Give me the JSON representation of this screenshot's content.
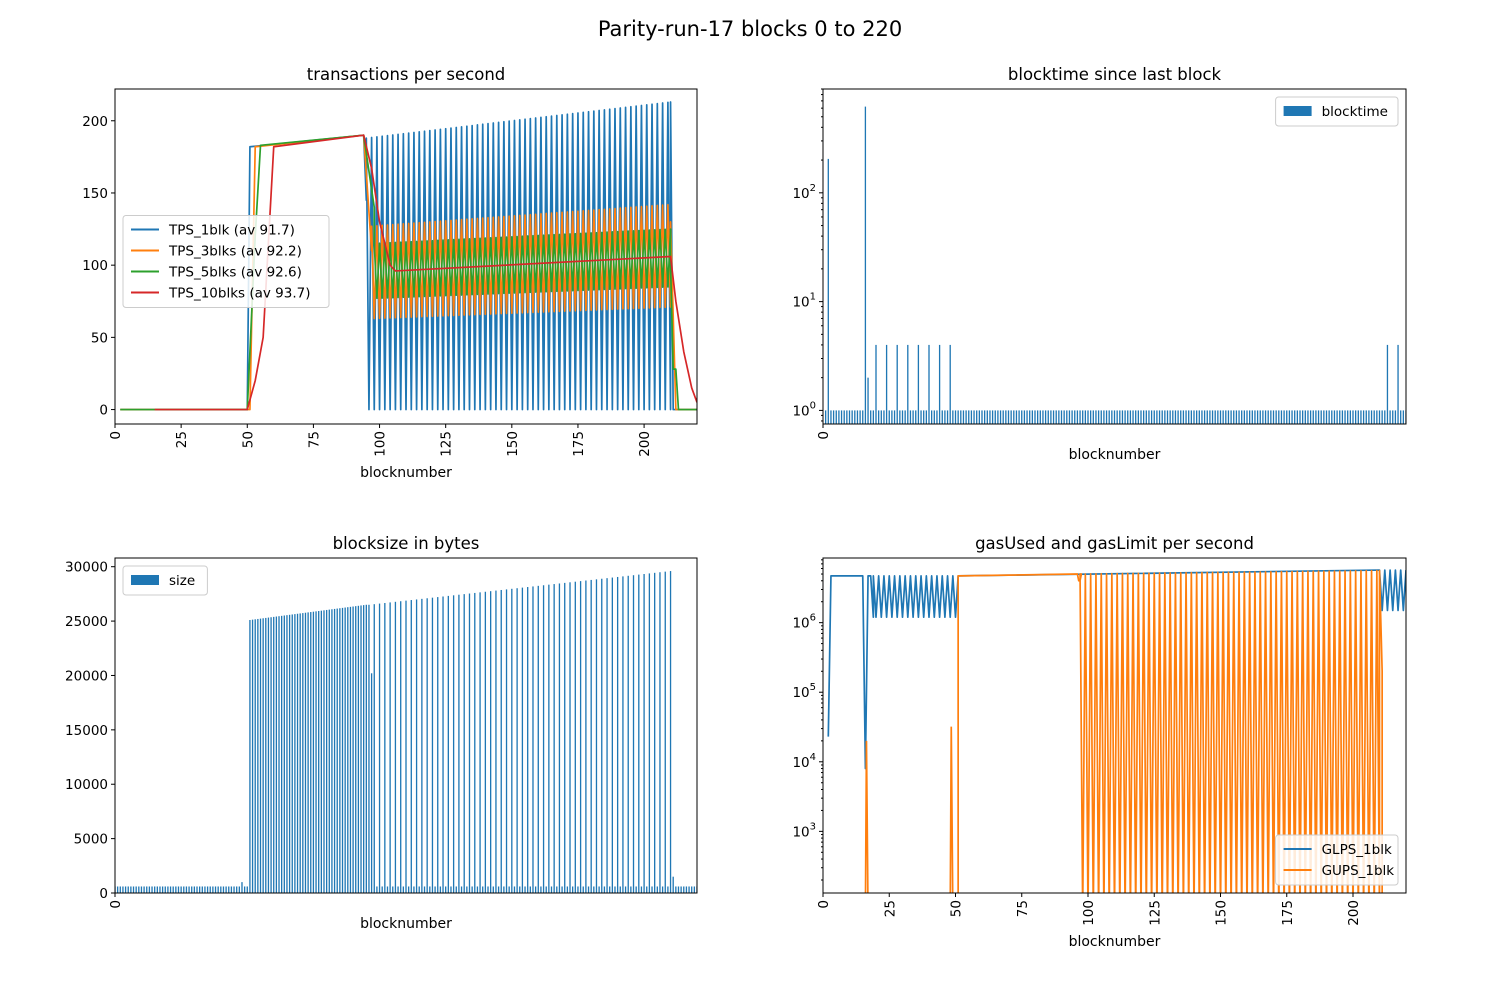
{
  "figure": {
    "title": "Parity-run-17 blocks 0 to 220",
    "colors": {
      "blue": "#1f77b4",
      "orange": "#ff7f0e",
      "green": "#2ca02c",
      "red": "#d62728"
    }
  },
  "chart_data": [
    {
      "id": "tps",
      "type": "line",
      "title": "transactions per second",
      "xlabel": "blocknumber",
      "ylabel": "",
      "xlim": [
        0,
        220
      ],
      "ylim": [
        -10,
        222
      ],
      "xticks": [
        0,
        25,
        50,
        75,
        100,
        125,
        150,
        175,
        200
      ],
      "yticks": [
        0,
        50,
        100,
        150,
        200
      ],
      "legend": "center-left",
      "series": [
        {
          "name": "TPS_1blk (av 91.7)",
          "color": "#1f77b4",
          "segments": [
            {
              "kind": "line",
              "points": [
                [
                  2,
                  0
                ],
                [
                  50,
                  0
                ],
                [
                  51,
                  182
                ],
                [
                  94,
                  190
                ],
                [
                  95,
                  145
                ]
              ]
            },
            {
              "kind": "osc",
              "from": 95,
              "to": 210,
              "period": 2,
              "high": [
                188,
                213
              ],
              "low": [
                0,
                0
              ]
            },
            {
              "kind": "line",
              "points": [
                [
                  210,
                  213
                ],
                [
                  211,
                  0
                ],
                [
                  220,
                  0
                ]
              ]
            }
          ]
        },
        {
          "name": "TPS_3blks (av 92.2)",
          "color": "#ff7f0e",
          "segments": [
            {
              "kind": "line",
              "points": [
                [
                  2,
                  0
                ],
                [
                  51,
                  0
                ],
                [
                  53,
                  182
                ],
                [
                  94,
                  190
                ],
                [
                  97,
                  110
                ]
              ]
            },
            {
              "kind": "osc",
              "from": 97,
              "to": 210,
              "period": 2,
              "high": [
                127,
                142
              ],
              "low": [
                63,
                71
              ]
            },
            {
              "kind": "line",
              "points": [
                [
                  210,
                  130
                ],
                [
                  212,
                  0
                ],
                [
                  220,
                  0
                ]
              ]
            }
          ]
        },
        {
          "name": "TPS_5blks (av 92.6)",
          "color": "#2ca02c",
          "segments": [
            {
              "kind": "line",
              "points": [
                [
                  2,
                  0
                ],
                [
                  50,
                  0
                ],
                [
                  53,
                  120
                ],
                [
                  55,
                  183
                ],
                [
                  94,
                  190
                ],
                [
                  98,
                  140
                ]
              ]
            },
            {
              "kind": "osc",
              "from": 98,
              "to": 210,
              "period": 2,
              "high": [
                115,
                125
              ],
              "low": [
                77,
                85
              ]
            },
            {
              "kind": "line",
              "points": [
                [
                  210,
                  100
                ],
                [
                  211,
                  28
                ],
                [
                  212,
                  28
                ],
                [
                  213,
                  0
                ],
                [
                  220,
                  0
                ]
              ]
            }
          ]
        },
        {
          "name": "TPS_10blks (av 93.7)",
          "color": "#d62728",
          "segments": [
            {
              "kind": "line",
              "points": [
                [
                  15,
                  0
                ],
                [
                  50,
                  0
                ],
                [
                  53,
                  20
                ],
                [
                  56,
                  50
                ],
                [
                  60,
                  182
                ],
                [
                  94,
                  190
                ],
                [
                  97,
                  167
                ],
                [
                  100,
                  130
                ],
                [
                  104,
                  100
                ],
                [
                  106,
                  96
                ],
                [
                  210,
                  106
                ],
                [
                  212,
                  75
                ],
                [
                  215,
                  40
                ],
                [
                  218,
                  15
                ],
                [
                  220,
                  5
                ]
              ]
            }
          ]
        }
      ]
    },
    {
      "id": "blocktime",
      "type": "bar",
      "title": "blocktime since last block",
      "xlabel": "blocknumber",
      "ylabel": "",
      "yscale": "log",
      "xlim": [
        0,
        220
      ],
      "ylim": [
        0.75,
        900
      ],
      "xticks": [
        0
      ],
      "yticks": [
        {
          "v": 1,
          "label": "10",
          "exp": "0"
        },
        {
          "v": 10,
          "label": "10",
          "exp": "1"
        },
        {
          "v": 100,
          "label": "10",
          "exp": "2"
        }
      ],
      "legend": "top-right",
      "series": [
        {
          "name": "blocktime",
          "color": "#1f77b4",
          "baseline": 1,
          "spikes": [
            [
              2,
              205
            ],
            [
              16,
              620
            ],
            [
              17,
              2
            ]
          ],
          "every_four_ranges": [
            [
              20,
              50
            ],
            [
              213,
              219
            ]
          ],
          "note": "all other blocks have value 1"
        }
      ]
    },
    {
      "id": "size",
      "type": "bar",
      "title": "blocksize in bytes",
      "xlabel": "blocknumber",
      "ylabel": "",
      "xlim": [
        0,
        220
      ],
      "ylim": [
        0,
        30800
      ],
      "xticks": [
        0
      ],
      "yticks": [
        0,
        5000,
        10000,
        15000,
        20000,
        25000,
        30000
      ],
      "legend": "top-left",
      "series": [
        {
          "name": "size",
          "color": "#1f77b4",
          "small_value": 600,
          "ranges": [
            {
              "from": 0,
              "to": 50,
              "mode": "all",
              "value": 600
            },
            {
              "from": 51,
              "to": 95,
              "mode": "all",
              "value_start": 25100,
              "value_end": 26500
            },
            {
              "from": 96,
              "to": 210,
              "mode": "alternate",
              "value_start": 26500,
              "value_end": 29600
            },
            {
              "from": 211,
              "to": 220,
              "mode": "all",
              "value": 600
            }
          ],
          "extra": [
            [
              48,
              1000
            ],
            [
              97,
              20200
            ],
            [
              211,
              1500
            ]
          ]
        }
      ]
    },
    {
      "id": "gas",
      "type": "line",
      "title": "gasUsed and gasLimit per second",
      "xlabel": "blocknumber",
      "ylabel": "",
      "yscale": "log",
      "xlim": [
        0,
        220
      ],
      "ylim": [
        130,
        8500000
      ],
      "xticks": [
        0,
        25,
        50,
        75,
        100,
        125,
        150,
        175,
        200
      ],
      "yticks": [
        {
          "v": 1000,
          "label": "10",
          "exp": "3"
        },
        {
          "v": 10000,
          "label": "10",
          "exp": "4"
        },
        {
          "v": 100000,
          "label": "10",
          "exp": "5"
        },
        {
          "v": 1000000,
          "label": "10",
          "exp": "6"
        }
      ],
      "legend": "bottom-right",
      "series": [
        {
          "name": "GLPS_1blk",
          "color": "#1f77b4",
          "segments": [
            {
              "kind": "line",
              "points": [
                [
                  2,
                  23000
                ],
                [
                  3,
                  4700000
                ],
                [
                  15,
                  4700000
                ],
                [
                  16,
                  8000
                ],
                [
                  17,
                  4700000
                ],
                [
                  18,
                  4700000
                ],
                [
                  19,
                  1200000
                ]
              ]
            },
            {
              "kind": "osc",
              "from": 19,
              "to": 50,
              "period": 2,
              "high": [
                4700000,
                4700000
              ],
              "low": [
                1200000,
                1200000
              ]
            },
            {
              "kind": "line",
              "points": [
                [
                  50,
                  1200000
                ],
                [
                  51,
                  4700000
                ],
                [
                  210,
                  5700000
                ]
              ]
            },
            {
              "kind": "osc",
              "from": 210,
              "to": 220,
              "period": 2,
              "high": [
                5700000,
                5700000
              ],
              "low": [
                1500000,
                1500000
              ]
            }
          ]
        },
        {
          "name": "GUPS_1blk",
          "color": "#ff7f0e",
          "spikes": [
            {
              "from": 16,
              "to": 17,
              "high": 20000
            },
            {
              "from": 48,
              "to": 49,
              "high": 32000
            }
          ],
          "segments": [
            {
              "kind": "line",
              "points": [
                [
                  51,
                  130
                ],
                [
                  51,
                  4700000
                ],
                [
                  96,
                  5000000
                ],
                [
                  96.5,
                  4000000
                ],
                [
                  97,
                  4000000
                ],
                [
                  97.5,
                  5000000
                ]
              ]
            },
            {
              "kind": "osc_bottom",
              "from": 97,
              "to": 210,
              "period": 2,
              "high": [
                5000000,
                5600000
              ]
            },
            {
              "kind": "line",
              "points": [
                [
                  210,
                  5600000
                ],
                [
                  211,
                  200000
                ],
                [
                  211,
                  130
                ]
              ]
            }
          ]
        }
      ]
    }
  ]
}
